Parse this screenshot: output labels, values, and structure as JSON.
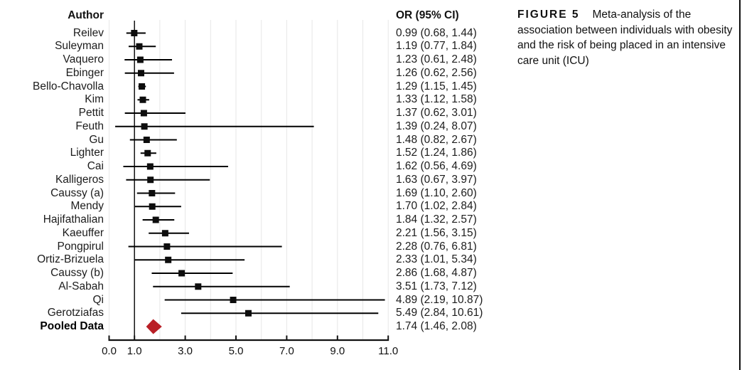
{
  "figure": {
    "caption_label": "FIGURE 5",
    "caption_lines": [
      "Meta-analysis of the",
      "association between individuals with obesity",
      "and the risk of being placed in an intensive",
      "care unit (ICU)"
    ]
  },
  "chart_data": {
    "type": "forest",
    "author_header": "Author",
    "or_header": "OR (95% CI)",
    "studies": [
      {
        "author": "Reilev",
        "or": 0.99,
        "ci_low": 0.68,
        "ci_high": 1.44,
        "label": "0.99 (0.68, 1.44)"
      },
      {
        "author": "Suleyman",
        "or": 1.19,
        "ci_low": 0.77,
        "ci_high": 1.84,
        "label": "1.19 (0.77, 1.84)"
      },
      {
        "author": "Vaquero",
        "or": 1.23,
        "ci_low": 0.61,
        "ci_high": 2.48,
        "label": "1.23 (0.61, 2.48)"
      },
      {
        "author": "Ebinger",
        "or": 1.26,
        "ci_low": 0.62,
        "ci_high": 2.56,
        "label": "1.26 (0.62, 2.56)"
      },
      {
        "author": "Bello-Chavolla",
        "or": 1.29,
        "ci_low": 1.15,
        "ci_high": 1.45,
        "label": "1.29 (1.15, 1.45)"
      },
      {
        "author": "Kim",
        "or": 1.33,
        "ci_low": 1.12,
        "ci_high": 1.58,
        "label": "1.33 (1.12, 1.58)"
      },
      {
        "author": "Pettit",
        "or": 1.37,
        "ci_low": 0.62,
        "ci_high": 3.01,
        "label": "1.37 (0.62, 3.01)"
      },
      {
        "author": "Feuth",
        "or": 1.39,
        "ci_low": 0.24,
        "ci_high": 8.07,
        "label": "1.39 (0.24, 8.07)"
      },
      {
        "author": "Gu",
        "or": 1.48,
        "ci_low": 0.82,
        "ci_high": 2.67,
        "label": "1.48 (0.82, 2.67)"
      },
      {
        "author": "Lighter",
        "or": 1.52,
        "ci_low": 1.24,
        "ci_high": 1.86,
        "label": "1.52 (1.24, 1.86)"
      },
      {
        "author": "Cai",
        "or": 1.62,
        "ci_low": 0.56,
        "ci_high": 4.69,
        "label": "1.62 (0.56, 4.69)"
      },
      {
        "author": "Kalligeros",
        "or": 1.63,
        "ci_low": 0.67,
        "ci_high": 3.97,
        "label": "1.63 (0.67, 3.97)"
      },
      {
        "author": "Caussy (a)",
        "or": 1.69,
        "ci_low": 1.1,
        "ci_high": 2.6,
        "label": "1.69 (1.10, 2.60)"
      },
      {
        "author": "Mendy",
        "or": 1.7,
        "ci_low": 1.02,
        "ci_high": 2.84,
        "label": "1.70 (1.02, 2.84)"
      },
      {
        "author": "Hajifathalian",
        "or": 1.84,
        "ci_low": 1.32,
        "ci_high": 2.57,
        "label": "1.84 (1.32, 2.57)"
      },
      {
        "author": "Kaeuffer",
        "or": 2.21,
        "ci_low": 1.56,
        "ci_high": 3.15,
        "label": "2.21 (1.56, 3.15)"
      },
      {
        "author": "Pongpirul",
        "or": 2.28,
        "ci_low": 0.76,
        "ci_high": 6.81,
        "label": "2.28 (0.76, 6.81)"
      },
      {
        "author": "Ortiz-Brizuela",
        "or": 2.33,
        "ci_low": 1.01,
        "ci_high": 5.34,
        "label": "2.33 (1.01, 5.34)"
      },
      {
        "author": "Caussy (b)",
        "or": 2.86,
        "ci_low": 1.68,
        "ci_high": 4.87,
        "label": "2.86 (1.68, 4.87)"
      },
      {
        "author": "Al-Sabah",
        "or": 3.51,
        "ci_low": 1.73,
        "ci_high": 7.12,
        "label": "3.51 (1.73, 7.12)"
      },
      {
        "author": "Qi",
        "or": 4.89,
        "ci_low": 2.19,
        "ci_high": 10.87,
        "label": "4.89 (2.19, 10.87)"
      },
      {
        "author": "Gerotziafas",
        "or": 5.49,
        "ci_low": 2.84,
        "ci_high": 10.61,
        "label": "5.49 (2.84, 10.61)"
      }
    ],
    "pooled": {
      "author": "Pooled Data",
      "or": 1.74,
      "ci_low": 1.46,
      "ci_high": 2.08,
      "label": "1.74 (1.46, 2.08)"
    },
    "x_axis": {
      "range": [
        0,
        11
      ],
      "tick_values": [
        0,
        1,
        3,
        5,
        7,
        9,
        11
      ],
      "tick_labels": [
        "0.0",
        "1.0",
        "3.0",
        "5.0",
        "7.0",
        "9.0",
        "11.0"
      ],
      "gridlines_at": [
        0,
        2,
        3,
        4,
        5,
        6,
        7,
        8,
        9,
        10,
        11
      ],
      "reference_line": 1.0,
      "grid": true
    },
    "colors": {
      "marker": "#0d0d0d",
      "ci_line": "#000000",
      "pooled_diamond": "#b91f26",
      "gridline": "#e7e7e7",
      "axis": "#111111"
    }
  }
}
